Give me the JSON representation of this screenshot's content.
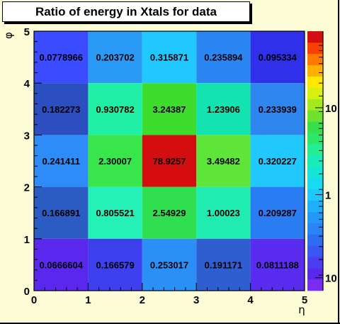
{
  "title": "Ratio of energy in Xtals for data",
  "chart_data": {
    "type": "heatmap",
    "title": "Ratio of energy in Xtals for data",
    "xlabel": "η",
    "ylabel": "φ",
    "xlim": [
      0,
      5
    ],
    "ylim": [
      0,
      5
    ],
    "x_ticks": [
      "0",
      "1",
      "2",
      "3",
      "4",
      "5"
    ],
    "y_ticks": [
      "0",
      "1",
      "2",
      "3",
      "4",
      "5"
    ],
    "colorbar": {
      "scale": "log",
      "tick_labels": [
        "10",
        "1",
        "10"
      ]
    },
    "rows_top_to_bottom": [
      [
        "0.0778966",
        "0.203702",
        "0.315871",
        "0.235894",
        "0.095334"
      ],
      [
        "0.182273",
        "0.930782",
        "3.24387",
        "1.23906",
        "0.233939"
      ],
      [
        "0.241411",
        "2.30007",
        "78.9257",
        "3.49482",
        "0.320227"
      ],
      [
        "0.166891",
        "0.805521",
        "2.54929",
        "1.00023",
        "0.209287"
      ],
      [
        "0.0666604",
        "0.166579",
        "0.253017",
        "0.191171",
        "0.0811188"
      ]
    ],
    "cell_colors_top_to_bottom": [
      [
        "#3b4bff",
        "#2a9af7",
        "#21c8ff",
        "#2b86f4",
        "#3030ea"
      ],
      [
        "#2b4ec0",
        "#20f0a6",
        "#3ddc2c",
        "#14e2b0",
        "#2f86ef"
      ],
      [
        "#2d8cf7",
        "#38e54a",
        "#d40e0e",
        "#5fe43a",
        "#21c8fd"
      ],
      [
        "#2a5cc4",
        "#24f0b8",
        "#30df50",
        "#20ecb2",
        "#2a7cf2"
      ],
      [
        "#5a27ec",
        "#3e40ee",
        "#2a8ff6",
        "#2e5ed0",
        "#5a2cf0"
      ]
    ],
    "colorbar_colors_bottom_to_top": [
      "#7a2df0",
      "#5a28ec",
      "#4a3ef0",
      "#3c56f4",
      "#2e6cf2",
      "#2a84f6",
      "#2498f8",
      "#20b0fa",
      "#1ec8fc",
      "#18daf0",
      "#14e6d6",
      "#18ecb8",
      "#22ee96",
      "#2ee66a",
      "#3ade4a",
      "#6ee030",
      "#a4ea20",
      "#d6f010",
      "#ffe800",
      "#ffb000",
      "#ff7a00",
      "#f84000",
      "#d40e0e"
    ],
    "background": "#fcfdd6"
  }
}
